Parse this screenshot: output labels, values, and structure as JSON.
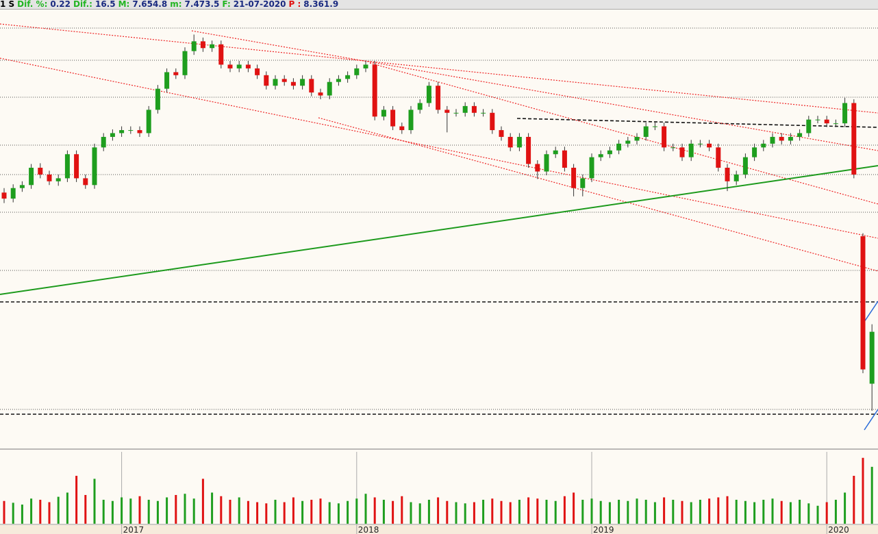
{
  "header": {
    "items": [
      {
        "label": "1 S",
        "value": null
      },
      {
        "label": "Dif. %:",
        "value": "0.22"
      },
      {
        "label": "Dif.:",
        "value": "16.5"
      },
      {
        "label": "M:",
        "value": "7.654.8"
      },
      {
        "label": "m:",
        "value": "7.473.5"
      },
      {
        "label": "F:",
        "value": "21-07-2020"
      },
      {
        "label": "P :",
        "value": "8.361.9"
      }
    ]
  },
  "chart_data": {
    "type": "candlestick",
    "colors": {
      "up": "#1e9e1e",
      "down": "#e01212"
    },
    "ylim": [
      5600,
      11450
    ],
    "volume_lim": [
      0,
      120
    ],
    "categories": [
      null,
      null,
      null,
      null,
      null,
      null,
      null,
      null,
      null,
      null,
      null,
      null,
      null,
      "2017",
      null,
      null,
      null,
      null,
      null,
      null,
      null,
      null,
      null,
      null,
      null,
      null,
      null,
      null,
      null,
      null,
      null,
      null,
      null,
      null,
      null,
      null,
      null,
      null,
      null,
      "2018",
      null,
      null,
      null,
      null,
      null,
      null,
      null,
      null,
      null,
      null,
      null,
      null,
      null,
      null,
      null,
      null,
      null,
      null,
      null,
      null,
      null,
      null,
      null,
      null,
      null,
      "2019",
      null,
      null,
      null,
      null,
      null,
      null,
      null,
      null,
      null,
      null,
      null,
      null,
      null,
      null,
      null,
      null,
      null,
      null,
      null,
      null,
      null,
      null,
      null,
      null,
      null,
      "2020",
      null,
      null,
      null,
      null,
      null
    ],
    "ohlc": [
      [
        9000,
        9060,
        8860,
        8920
      ],
      [
        8920,
        9110,
        8870,
        9060
      ],
      [
        9060,
        9150,
        9010,
        9100
      ],
      [
        9100,
        9380,
        9050,
        9330
      ],
      [
        9330,
        9390,
        9190,
        9240
      ],
      [
        9240,
        9290,
        9100,
        9150
      ],
      [
        9150,
        9240,
        9090,
        9190
      ],
      [
        9190,
        9560,
        9140,
        9510
      ],
      [
        9510,
        9560,
        9140,
        9190
      ],
      [
        9190,
        9240,
        9050,
        9100
      ],
      [
        9100,
        9650,
        9050,
        9600
      ],
      [
        9600,
        9790,
        9550,
        9740
      ],
      [
        9740,
        9840,
        9690,
        9790
      ],
      [
        9790,
        9880,
        9740,
        9830
      ],
      [
        9830,
        9880,
        9780,
        9830
      ],
      [
        9830,
        9880,
        9740,
        9790
      ],
      [
        9790,
        10150,
        9740,
        10100
      ],
      [
        10100,
        10430,
        10050,
        10380
      ],
      [
        10380,
        10650,
        10330,
        10600
      ],
      [
        10600,
        10650,
        10510,
        10560
      ],
      [
        10560,
        10930,
        10510,
        10880
      ],
      [
        10880,
        11100,
        10830,
        11010
      ],
      [
        11010,
        11060,
        10870,
        10920
      ],
      [
        10920,
        11020,
        10870,
        10970
      ],
      [
        10970,
        11020,
        10650,
        10700
      ],
      [
        10700,
        10750,
        10600,
        10650
      ],
      [
        10650,
        10750,
        10600,
        10700
      ],
      [
        10700,
        10750,
        10600,
        10650
      ],
      [
        10650,
        10700,
        10510,
        10560
      ],
      [
        10560,
        10610,
        10370,
        10420
      ],
      [
        10420,
        10560,
        10370,
        10510
      ],
      [
        10510,
        10560,
        10420,
        10470
      ],
      [
        10470,
        10520,
        10370,
        10420
      ],
      [
        10420,
        10560,
        10370,
        10510
      ],
      [
        10510,
        10560,
        10280,
        10330
      ],
      [
        10330,
        10380,
        10240,
        10290
      ],
      [
        10290,
        10520,
        10240,
        10470
      ],
      [
        10470,
        10560,
        10420,
        10510
      ],
      [
        10510,
        10610,
        10460,
        10560
      ],
      [
        10560,
        10700,
        10510,
        10650
      ],
      [
        10650,
        10750,
        10600,
        10700
      ],
      [
        10700,
        10750,
        9960,
        10010
      ],
      [
        10010,
        10150,
        9960,
        10100
      ],
      [
        10100,
        10150,
        9830,
        9880
      ],
      [
        9880,
        9930,
        9780,
        9830
      ],
      [
        9830,
        10150,
        9780,
        10100
      ],
      [
        10100,
        10240,
        10050,
        10190
      ],
      [
        10190,
        10470,
        10140,
        10420
      ],
      [
        10420,
        10470,
        10050,
        10100
      ],
      [
        10100,
        10150,
        9800,
        10060
      ],
      [
        10060,
        10110,
        10010,
        10060
      ],
      [
        10060,
        10200,
        10010,
        10150
      ],
      [
        10150,
        10200,
        10010,
        10060
      ],
      [
        10060,
        10110,
        10010,
        10060
      ],
      [
        10060,
        10110,
        9780,
        9830
      ],
      [
        9830,
        9880,
        9690,
        9740
      ],
      [
        9740,
        9790,
        9550,
        9600
      ],
      [
        9600,
        9790,
        9550,
        9740
      ],
      [
        9740,
        9790,
        9330,
        9380
      ],
      [
        9380,
        9430,
        9180,
        9280
      ],
      [
        9280,
        9560,
        9230,
        9510
      ],
      [
        9510,
        9610,
        9460,
        9560
      ],
      [
        9560,
        9610,
        9280,
        9330
      ],
      [
        9330,
        9380,
        8950,
        9060
      ],
      [
        9060,
        9240,
        8950,
        9190
      ],
      [
        9190,
        9520,
        9140,
        9470
      ],
      [
        9470,
        9560,
        9420,
        9510
      ],
      [
        9510,
        9610,
        9460,
        9560
      ],
      [
        9560,
        9700,
        9510,
        9650
      ],
      [
        9650,
        9740,
        9600,
        9690
      ],
      [
        9690,
        9790,
        9640,
        9740
      ],
      [
        9740,
        9930,
        9690,
        9880
      ],
      [
        9880,
        9930,
        9830,
        9880
      ],
      [
        9880,
        9930,
        9550,
        9600
      ],
      [
        9600,
        9650,
        9550,
        9600
      ],
      [
        9600,
        9650,
        9420,
        9470
      ],
      [
        9470,
        9700,
        9420,
        9650
      ],
      [
        9650,
        9700,
        9600,
        9650
      ],
      [
        9650,
        9700,
        9550,
        9600
      ],
      [
        9600,
        9650,
        9280,
        9330
      ],
      [
        9330,
        9380,
        9020,
        9150
      ],
      [
        9150,
        9290,
        9100,
        9240
      ],
      [
        9240,
        9520,
        9190,
        9470
      ],
      [
        9470,
        9650,
        9420,
        9600
      ],
      [
        9600,
        9700,
        9550,
        9650
      ],
      [
        9650,
        9790,
        9600,
        9740
      ],
      [
        9740,
        9790,
        9640,
        9690
      ],
      [
        9690,
        9790,
        9640,
        9740
      ],
      [
        9740,
        9840,
        9690,
        9790
      ],
      [
        9790,
        10020,
        9740,
        9970
      ],
      [
        9970,
        10020,
        9920,
        9970
      ],
      [
        9970,
        10020,
        9870,
        9920
      ],
      [
        9920,
        9970,
        9870,
        9920
      ],
      [
        9920,
        10260,
        9870,
        10190
      ],
      [
        10190,
        10240,
        9190,
        9240
      ],
      [
        8420,
        8460,
        6600,
        6650
      ],
      [
        6460,
        7250,
        6100,
        7150
      ]
    ],
    "volume": [
      38,
      35,
      32,
      42,
      40,
      36,
      45,
      52,
      80,
      48,
      75,
      40,
      38,
      44,
      42,
      46,
      40,
      38,
      44,
      48,
      50,
      42,
      75,
      52,
      46,
      40,
      44,
      38,
      36,
      34,
      40,
      36,
      44,
      38,
      40,
      42,
      36,
      34,
      38,
      42,
      50,
      44,
      40,
      38,
      46,
      36,
      34,
      40,
      44,
      38,
      36,
      34,
      36,
      40,
      42,
      38,
      36,
      40,
      44,
      42,
      40,
      38,
      46,
      52,
      40,
      42,
      38,
      36,
      40,
      38,
      42,
      40,
      36,
      44,
      40,
      38,
      36,
      40,
      42,
      44,
      46,
      40,
      38,
      36,
      40,
      42,
      38,
      36,
      40,
      34,
      30,
      36,
      40,
      52,
      80,
      110,
      95
    ]
  }
}
